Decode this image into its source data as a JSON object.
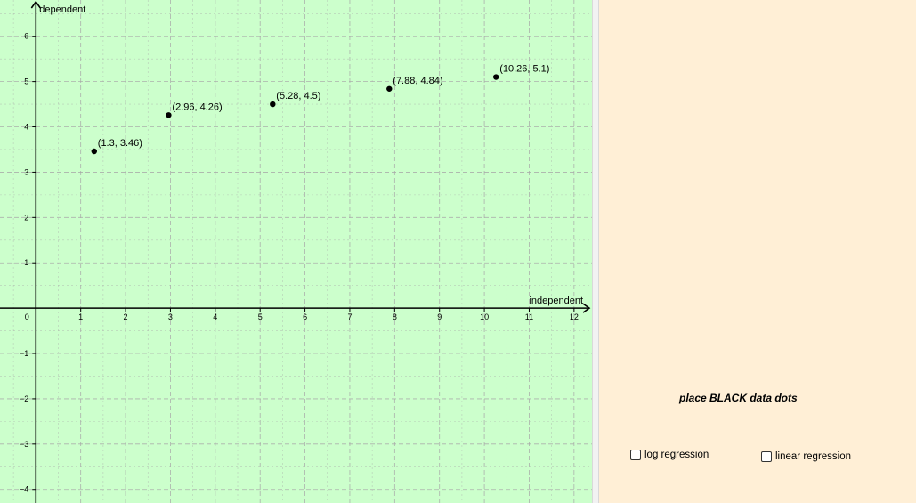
{
  "graph": {
    "x_axis_label": "independent",
    "y_axis_label": "dependent"
  },
  "panel": {
    "instruction": "place BLACK data dots",
    "checkboxes": [
      {
        "label": "log regression",
        "checked": false
      },
      {
        "label": "linear regression",
        "checked": false
      }
    ]
  },
  "colors": {
    "graph_background": "#ccffcc",
    "panel_background": "#ffefd6",
    "point_color": "#000000",
    "grid_color": "#a8a8a8"
  },
  "chart_data": {
    "type": "scatter",
    "title": "",
    "xlabel": "independent",
    "ylabel": "dependent",
    "xlim": [
      -0.8,
      12.4
    ],
    "ylim": [
      -4.3,
      6.8
    ],
    "grid": true,
    "x_ticks": [
      0,
      1,
      2,
      3,
      4,
      5,
      6,
      7,
      8,
      9,
      10,
      11,
      12
    ],
    "y_ticks": [
      -4,
      -3,
      -2,
      -1,
      1,
      2,
      3,
      4,
      5,
      6
    ],
    "points": [
      {
        "x": 1.3,
        "y": 3.46,
        "label": "(1.3, 3.46)"
      },
      {
        "x": 2.96,
        "y": 4.26,
        "label": "(2.96, 4.26)"
      },
      {
        "x": 5.28,
        "y": 4.5,
        "label": "(5.28, 4.5)"
      },
      {
        "x": 7.88,
        "y": 4.84,
        "label": "(7.88, 4.84)"
      },
      {
        "x": 10.26,
        "y": 5.1,
        "label": "(10.26, 5.1)"
      }
    ]
  }
}
